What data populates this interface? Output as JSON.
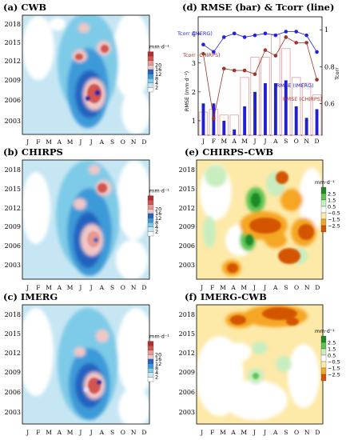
{
  "months": [
    "J",
    "F",
    "M",
    "A",
    "M",
    "J",
    "J",
    "A",
    "S",
    "O",
    "N",
    "D"
  ],
  "year_ticks": [
    "2003",
    "2006",
    "2009",
    "2012",
    "2015",
    "2018"
  ],
  "precip_legend": {
    "unit": "mm·d⁻¹",
    "labels": [
      "2",
      "4",
      "8",
      "12",
      "16",
      "20"
    ],
    "colors": [
      "#ffffff",
      "#c6e6f3",
      "#7ecbe7",
      "#3d9ad8",
      "#2463c0",
      "#f0c7c5",
      "#e69891",
      "#d25550",
      "#b62c2c"
    ]
  },
  "diff_legend": {
    "unit": "mm·d⁻¹",
    "labels": [
      "−2.5",
      "−1.5",
      "−0.5",
      "0.5",
      "1.5",
      "2.5"
    ],
    "colors": [
      "#d35400",
      "#f5a623",
      "#fde9a8",
      "#ffffff",
      "#c8eec0",
      "#5cc451",
      "#1e8a26"
    ]
  },
  "panels": {
    "a": {
      "title": "(a) CWB"
    },
    "b": {
      "title": "(b) CHIRPS"
    },
    "c": {
      "title": "(c) IMERG"
    },
    "e": {
      "title": "(e) CHIRPS-CWB"
    },
    "f": {
      "title": "(f) IMERG-CWB"
    }
  },
  "chart_data": {
    "type": "bar",
    "title": "(d) RMSE (bar) & Tcorr (line)",
    "categories": [
      "J",
      "F",
      "M",
      "A",
      "M",
      "J",
      "J",
      "A",
      "S",
      "O",
      "N",
      "D"
    ],
    "ylabel_left": "RMSE (mm·d⁻¹)",
    "ylabel_right": "Tcorr",
    "ylim_left": [
      0.5,
      4.6
    ],
    "yticks_left": [
      "1",
      "2",
      "3",
      "4"
    ],
    "ylim_right": [
      0.43,
      1.07
    ],
    "yticks_right": [
      "0.6",
      "0.8",
      "1"
    ],
    "bar_series": [
      {
        "name": "RMSE (IMERG)",
        "color": "#2020d0",
        "values": [
          1.6,
          1.6,
          1.0,
          0.7,
          1.5,
          2.0,
          2.3,
          2.3,
          2.4,
          1.5,
          1.1,
          1.4
        ]
      },
      {
        "name": "RMSE (CHIRPS)",
        "color": "#e8a8a8",
        "values": [
          1.3,
          1.4,
          1.2,
          1.2,
          2.5,
          3.2,
          3.2,
          4.0,
          3.5,
          2.5,
          2.3,
          1.9
        ]
      }
    ],
    "line_series": [
      {
        "name": "Tcorr (IMERG)",
        "color": "#2020e0",
        "values": [
          0.92,
          0.88,
          0.96,
          0.98,
          0.96,
          0.97,
          0.98,
          0.97,
          0.99,
          0.99,
          0.97,
          0.88
        ]
      },
      {
        "name": "Tcorr (CHIRPS)",
        "color": "#a03428",
        "values": [
          0.87,
          0.52,
          0.79,
          0.78,
          0.78,
          0.76,
          0.89,
          0.86,
          0.96,
          0.93,
          0.93,
          0.73
        ]
      }
    ]
  }
}
